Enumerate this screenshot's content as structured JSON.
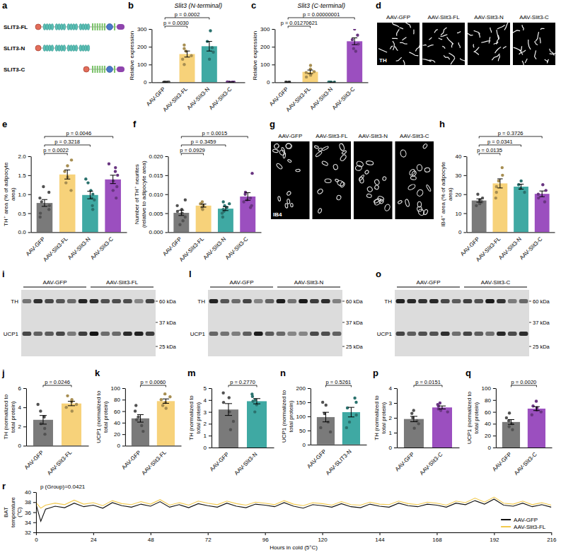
{
  "diagram": {
    "panel": "a",
    "constructs": [
      "SLIT3-FL",
      "SLIT3-N",
      "SLIT3-C"
    ]
  },
  "images": [
    {
      "panel": "d",
      "stain": "TH",
      "titles": [
        "AAV-GFP",
        "AAV-Slit3-FL",
        "AAV-Slit3-N",
        "AAV-Slit3-C"
      ]
    },
    {
      "panel": "g",
      "stain": "IB4",
      "titles": [
        "AAV-GFP",
        "AAV-Slit3-FL",
        "AAV-Slit3-N",
        "AAV-Slit3-C"
      ]
    }
  ],
  "blots": [
    {
      "panel": "i",
      "groups": [
        "AAV-GFP",
        "AAV-Slit3-FL"
      ],
      "bands": [
        "TH",
        "UCP1"
      ],
      "markers": [
        "60 kDa",
        "37 kDa",
        "25 kDa"
      ]
    },
    {
      "panel": "l",
      "groups": [
        "AAV-GFP",
        "AAV-Slit3-N"
      ],
      "bands": [
        "TH",
        "UCP1"
      ],
      "markers": [
        "60 kDa",
        "37 kDa",
        "25 kDa"
      ]
    },
    {
      "panel": "o",
      "groups": [
        "AAV-GFP",
        "AAV-Slit3-C"
      ],
      "bands": [
        "TH",
        "UCP1"
      ],
      "markers": [
        "60 kDa",
        "37 kDa",
        "25 kDa"
      ]
    }
  ],
  "chart_data": [
    {
      "type": "bar",
      "panel": "b",
      "title": "Slit3 (N-terminal)",
      "ylabel": "Relative expression",
      "categories": [
        "AAV-GFP",
        "AAV-Slit3-FL",
        "AAV-Slit3-N",
        "AAV-Slit3-C"
      ],
      "values": [
        1,
        159,
        203,
        1.2
      ],
      "errors": [
        0.1,
        17,
        27,
        0.2
      ],
      "points": [
        [
          1,
          1,
          1,
          1,
          1,
          1
        ],
        [
          100,
          130,
          150,
          175,
          190,
          210
        ],
        [
          130,
          170,
          195,
          230,
          290
        ],
        [
          1,
          1,
          1,
          2,
          1
        ]
      ],
      "colors": [
        "#7a7a7a",
        "#f7d27a",
        "#3fa9a3",
        "#9b4fbf"
      ],
      "ylim": [
        0,
        300
      ],
      "yticks": [
        0,
        100,
        200,
        300
      ],
      "annotations": [
        {
          "text": "p = 0.0030",
          "from": "AAV-GFP",
          "to": "AAV-Slit3-FL"
        },
        {
          "text": "p = 0.0002",
          "from": "AAV-GFP",
          "to": "AAV-Slit3-N"
        }
      ]
    },
    {
      "type": "bar",
      "panel": "c",
      "title": "Slit3 (C-terminal)",
      "ylabel": "Relative expression",
      "categories": [
        "AAV-GFP",
        "AAV-Slit3-FL",
        "AAV-Slit3-N",
        "AAV-Slit3-C"
      ],
      "values": [
        1,
        59,
        0.5,
        231
      ],
      "errors": [
        0.1,
        10,
        0.05,
        19
      ],
      "points": [
        [
          1,
          1,
          1,
          1,
          1,
          1
        ],
        [
          30,
          40,
          55,
          60,
          75,
          95
        ],
        [
          0.5,
          0.5,
          0.5,
          0.5,
          0.5
        ],
        [
          175,
          190,
          215,
          240,
          265,
          300
        ]
      ],
      "colors": [
        "#7a7a7a",
        "#f7d27a",
        "#3fa9a3",
        "#9b4fbf"
      ],
      "ylim": [
        0,
        300
      ],
      "yticks": [
        0,
        100,
        200,
        300
      ],
      "annotations": [
        {
          "text": "p = 0.01270621",
          "from": "AAV-GFP",
          "to": "AAV-Slit3-FL"
        },
        {
          "text": "p = 0.00000001",
          "from": "AAV-GFP",
          "to": "AAV-Slit3-C"
        }
      ]
    },
    {
      "type": "bar",
      "panel": "e",
      "ylabel": "TH⁺ area (% of adipocyte area)",
      "categories": [
        "AAV-GFP",
        "AAV-Slit3-FL",
        "AAV-Slit3-N",
        "AAV-Slit3-C"
      ],
      "values": [
        0.77,
        1.52,
        0.98,
        1.39
      ],
      "errors": [
        0.09,
        0.12,
        0.1,
        0.11
      ],
      "points": [
        [
          0.4,
          0.5,
          0.6,
          0.7,
          0.8,
          0.9,
          1.05,
          1.2
        ],
        [
          1.1,
          1.3,
          1.45,
          1.6,
          1.75,
          1.9
        ],
        [
          0.6,
          0.7,
          0.85,
          0.9,
          1.0,
          1.1,
          1.3,
          1.4
        ],
        [
          0.9,
          1.1,
          1.2,
          1.35,
          1.5,
          1.6,
          1.7,
          1.8
        ]
      ],
      "colors": [
        "#7a7a7a",
        "#f7d27a",
        "#3fa9a3",
        "#9b4fbf"
      ],
      "ylim": [
        0,
        2
      ],
      "yticks": [
        {
          "value": 0,
          "label": "0.0"
        },
        0.5,
        {
          "value": 1,
          "label": "1.0"
        },
        1.5,
        {
          "value": 2,
          "label": "2.0"
        }
      ],
      "annotations": [
        {
          "text": "p = 0.0022",
          "from": "AAV-GFP",
          "to": "AAV-Slit3-FL"
        },
        {
          "text": "p = 0.3218",
          "from": "AAV-GFP",
          "to": "AAV-Slit3-N"
        },
        {
          "text": "p = 0.0046",
          "from": "AAV-GFP",
          "to": "AAV-Slit3-C"
        }
      ]
    },
    {
      "type": "bar",
      "panel": "f",
      "ylabel": "Number of TH⁺ neurites (relative to adipocyte area)",
      "categories": [
        "AAV-GFP",
        "AAV-Slit3-FL",
        "AAV-Slit3-N",
        "AAV-Slit3-C"
      ],
      "values": [
        0.0051,
        0.007,
        0.0062,
        0.0094
      ],
      "errors": [
        0.0007,
        0.0004,
        0.0005,
        0.001
      ],
      "points": [
        [
          0.002,
          0.003,
          0.004,
          0.005,
          0.0055,
          0.006,
          0.007,
          0.0085
        ],
        [
          0.006,
          0.0065,
          0.007,
          0.0075,
          0.008
        ],
        [
          0.004,
          0.005,
          0.0055,
          0.006,
          0.0065,
          0.007,
          0.0075,
          0.008
        ],
        [
          0.0065,
          0.007,
          0.008,
          0.0085,
          0.009,
          0.01,
          0.0105,
          0.0155
        ]
      ],
      "colors": [
        "#7a7a7a",
        "#f7d27a",
        "#3fa9a3",
        "#9b4fbf"
      ],
      "ylim": [
        0,
        0.02
      ],
      "yticks": [
        {
          "value": 0,
          "label": "0.000"
        },
        0.005,
        {
          "value": 0.01,
          "label": "0.010"
        },
        0.015,
        {
          "value": 0.02,
          "label": "0.020"
        }
      ],
      "annotations": [
        {
          "text": "p = 0.0929",
          "from": "AAV-GFP",
          "to": "AAV-Slit3-FL"
        },
        {
          "text": "p = 0.3459",
          "from": "AAV-GFP",
          "to": "AAV-Slit3-N"
        },
        {
          "text": "p = 0.0015",
          "from": "AAV-GFP",
          "to": "AAV-Slit3-C"
        }
      ]
    },
    {
      "type": "bar",
      "panel": "h",
      "ylabel": "IB4⁺ area (% of adipocyte area)",
      "categories": [
        "AAV-GFP",
        "AAV-Slit3-FL",
        "AAV-Slit3-N",
        "AAV-Slit3-C"
      ],
      "values": [
        16.7,
        25.7,
        24,
        20.2
      ],
      "errors": [
        0.9,
        2.4,
        1.3,
        1.5
      ],
      "points": [
        [
          14,
          15,
          16,
          17,
          18,
          20
        ],
        [
          18,
          21,
          24,
          27,
          30,
          34
        ],
        [
          21,
          23,
          25,
          27
        ],
        [
          16,
          18,
          20,
          22,
          25
        ]
      ],
      "colors": [
        "#7a7a7a",
        "#f7d27a",
        "#3fa9a3",
        "#9b4fbf"
      ],
      "ylim": [
        0,
        40
      ],
      "yticks": [
        0,
        10,
        20,
        30,
        40
      ],
      "annotations": [
        {
          "text": "p = 0.0135",
          "from": "AAV-GFP",
          "to": "AAV-Slit3-FL"
        },
        {
          "text": "p = 0.0341",
          "from": "AAV-GFP",
          "to": "AAV-Slit3-N"
        },
        {
          "text": "p = 0.3726",
          "from": "AAV-GFP",
          "to": "AAV-Slit3-C"
        }
      ]
    },
    {
      "type": "bar",
      "panel": "j",
      "ylabel": "TH (normalized to total protein)",
      "categories": [
        "AAV-GFP",
        "AAV-Slit3-FL"
      ],
      "values": [
        2.7,
        4.4
      ],
      "errors": [
        0.45,
        0.23
      ],
      "points": [
        [
          1.2,
          1.8,
          2.3,
          3.0,
          3.6,
          4.3
        ],
        [
          3.6,
          4.0,
          4.3,
          4.6,
          4.8,
          5.2
        ]
      ],
      "colors": [
        "#7a7a7a",
        "#f7d27a"
      ],
      "ylim": [
        0,
        6
      ],
      "yticks": [
        0,
        2,
        4,
        6
      ],
      "annotations": [
        {
          "text": "p = 0.0246",
          "from": "AAV-GFP",
          "to": "AAV-Slit3-FL"
        }
      ]
    },
    {
      "type": "bar",
      "panel": "k",
      "ylabel": "UCP1 (normalized to total protein)",
      "categories": [
        "AAV-GFP",
        "AAV-Slit3-FL"
      ],
      "values": [
        47.5,
        77.5
      ],
      "errors": [
        6.5,
        3.8
      ],
      "points": [
        [
          25,
          35,
          45,
          50,
          60,
          70
        ],
        [
          65,
          70,
          75,
          80,
          85,
          90
        ]
      ],
      "colors": [
        "#7a7a7a",
        "#f7d27a"
      ],
      "ylim": [
        0,
        100
      ],
      "yticks": [
        0,
        20,
        40,
        60,
        80,
        100
      ],
      "annotations": [
        {
          "text": "p = 0.0060",
          "from": "AAV-GFP",
          "to": "AAV-Slit3-FL"
        }
      ]
    },
    {
      "type": "bar",
      "panel": "m",
      "ylabel": "TH (normalized to total protein)",
      "categories": [
        "AAV-GFP",
        "AAV-Slit3-N"
      ],
      "values": [
        3.2,
        3.9
      ],
      "errors": [
        0.5,
        0.22
      ],
      "points": [
        [
          1.5,
          2.2,
          3.0,
          3.8,
          4.2,
          4.6
        ],
        [
          3.0,
          3.6,
          3.9,
          4.0,
          4.3,
          4.5
        ]
      ],
      "colors": [
        "#7a7a7a",
        "#3fa9a3"
      ],
      "ylim": [
        0,
        5
      ],
      "yticks": [
        0,
        1,
        2,
        3,
        4,
        5
      ],
      "annotations": [
        {
          "text": "p = 0.2770",
          "from": "AAV-GFP",
          "to": "AAV-Slit3-N"
        }
      ]
    },
    {
      "type": "bar",
      "panel": "n",
      "ylabel": "UCP1 (normalized to total protein)",
      "categories": [
        "AAV-GFP",
        "AAV-SLIT3-N"
      ],
      "values": [
        97.5,
        115
      ],
      "errors": [
        17,
        17
      ],
      "points": [
        [
          45,
          60,
          80,
          110,
          140,
          150
        ],
        [
          60,
          80,
          105,
          130,
          150,
          165
        ]
      ],
      "colors": [
        "#7a7a7a",
        "#3fa9a3"
      ],
      "ylim": [
        0,
        200
      ],
      "yticks": [
        0,
        50,
        100,
        150,
        200
      ],
      "annotations": [
        {
          "text": "p = 0.5261",
          "from": "AAV-GFP",
          "to": "AAV-SLIT3-N"
        }
      ]
    },
    {
      "type": "bar",
      "panel": "p",
      "ylabel": "TH (normalized to total protein)",
      "categories": [
        "AAV-GFP",
        "AAV-Slit3-C"
      ],
      "values": [
        1.92,
        2.7
      ],
      "errors": [
        0.18,
        0.1
      ],
      "points": [
        [
          1.3,
          1.6,
          1.8,
          2.0,
          2.3,
          2.5
        ],
        [
          2.4,
          2.5,
          2.6,
          2.8,
          2.9,
          3.0
        ]
      ],
      "colors": [
        "#7a7a7a",
        "#9b4fbf"
      ],
      "ylim": [
        0,
        4
      ],
      "yticks": [
        0,
        1,
        2,
        3,
        4
      ],
      "annotations": [
        {
          "text": "p = 0.0151",
          "from": "AAV-GFP",
          "to": "AAV-Slit3-C"
        }
      ]
    },
    {
      "type": "bar",
      "panel": "q",
      "ylabel": "UCP1 (normalized to total protein)",
      "categories": [
        "AAV-GFP",
        "AAV-Slit3-C"
      ],
      "values": [
        43,
        65.5
      ],
      "errors": [
        4,
        3.3
      ],
      "points": [
        [
          30,
          35,
          40,
          45,
          50,
          58
        ],
        [
          55,
          60,
          63,
          67,
          70,
          78
        ]
      ],
      "colors": [
        "#7a7a7a",
        "#9b4fbf"
      ],
      "ylim": [
        0,
        100
      ],
      "yticks": [
        0,
        20,
        40,
        60,
        80,
        100
      ],
      "annotations": [
        {
          "text": "p = 0.0020",
          "from": "AAV-GFP",
          "to": "AAV-Slit3-C"
        }
      ]
    },
    {
      "type": "line",
      "panel": "r",
      "xlabel": "Hours in cold (5°C)",
      "ylabel": "BAT temperature (°C)",
      "x": [
        0,
        2,
        4,
        8,
        12,
        16,
        20,
        24,
        28,
        32,
        36,
        40,
        44,
        48,
        52,
        56,
        60,
        64,
        68,
        72,
        76,
        80,
        84,
        88,
        92,
        96,
        100,
        104,
        108,
        112,
        116,
        120,
        124,
        128,
        132,
        136,
        140,
        144,
        148,
        152,
        156,
        160,
        164,
        168,
        172,
        176,
        180,
        184,
        188,
        192,
        196,
        200,
        204,
        208,
        212,
        216
      ],
      "series": [
        {
          "name": "AAV-GFP",
          "color": "#111111",
          "values": [
            37.6,
            34.2,
            36.6,
            37.2,
            36.9,
            37.8,
            37.1,
            37.4,
            36.8,
            37.9,
            37.3,
            37.0,
            37.6,
            37.2,
            38.1,
            37.0,
            37.5,
            36.9,
            37.7,
            37.3,
            37.0,
            37.8,
            37.2,
            36.9,
            37.6,
            37.4,
            37.1,
            37.9,
            37.2,
            36.8,
            37.5,
            37.3,
            37.0,
            37.7,
            37.1,
            36.9,
            37.6,
            37.2,
            37.0,
            37.8,
            37.3,
            37.1,
            37.6,
            37.4,
            37.0,
            37.8,
            37.5,
            38.3,
            37.6,
            38.6,
            37.4,
            37.2,
            37.8,
            37.1,
            37.5,
            37.0
          ]
        },
        {
          "name": "AAV-Slit3-FL",
          "color": "#f2c94c",
          "values": [
            37.9,
            36.8,
            37.4,
            37.8,
            37.5,
            38.4,
            37.6,
            37.9,
            37.3,
            38.3,
            37.7,
            37.5,
            38.1,
            37.6,
            38.5,
            37.4,
            37.9,
            37.4,
            38.2,
            37.8,
            37.5,
            38.2,
            37.7,
            37.4,
            38.0,
            37.8,
            37.5,
            38.3,
            37.6,
            37.3,
            37.9,
            37.7,
            37.4,
            38.1,
            37.5,
            37.4,
            38.0,
            37.6,
            37.5,
            38.2,
            37.7,
            37.5,
            38.0,
            37.8,
            37.4,
            38.2,
            37.9,
            38.8,
            38.0,
            39.0,
            37.8,
            37.6,
            38.2,
            37.5,
            37.9,
            37.4
          ]
        }
      ],
      "xlim": [
        0,
        216
      ],
      "xticks": [
        0,
        24,
        48,
        72,
        96,
        120,
        144,
        168,
        192,
        216
      ],
      "ylim": [
        32,
        40
      ],
      "yticks": [
        32,
        34,
        36,
        38,
        40
      ],
      "legend": "lower right",
      "grid": false,
      "annotations": [
        {
          "text": "p (Group)=0.0421"
        }
      ]
    }
  ]
}
